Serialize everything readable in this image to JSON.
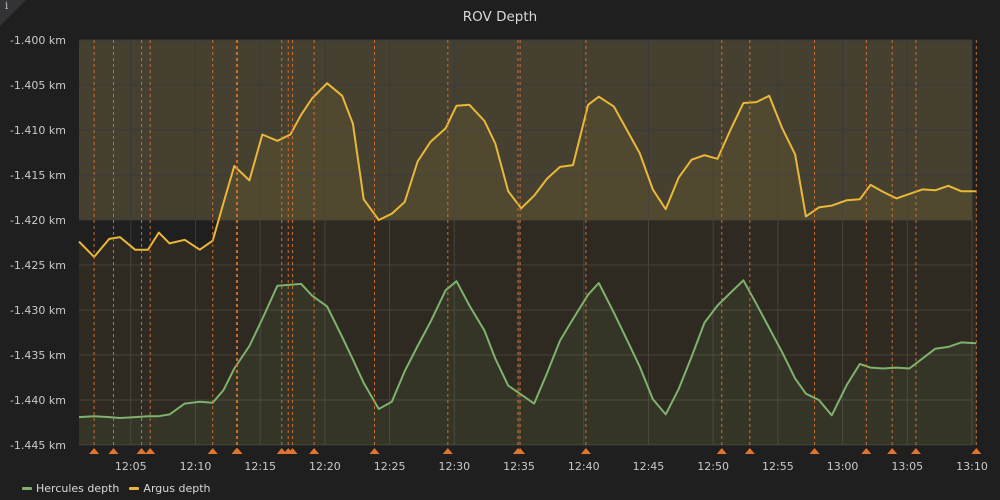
{
  "panel": {
    "title": "ROV Depth",
    "info_icon": "info-icon",
    "colors": {
      "background": "#1f1f20",
      "grid": "#3a3a3c",
      "threshold_fill": "#45402f",
      "annotation": "#e0752d"
    }
  },
  "chart_data": {
    "type": "line",
    "title": "ROV Depth",
    "xlabel": "",
    "ylabel": "",
    "x_range": [
      "12:01",
      "13:10"
    ],
    "ylim": [
      -1.445,
      -1.4
    ],
    "y_unit": "km",
    "y_ticks": [
      -1.4,
      -1.405,
      -1.41,
      -1.415,
      -1.42,
      -1.425,
      -1.43,
      -1.435,
      -1.44,
      -1.445
    ],
    "y_tick_labels": [
      "-1.400 km",
      "-1.405 km",
      "-1.410 km",
      "-1.415 km",
      "-1.420 km",
      "-1.425 km",
      "-1.430 km",
      "-1.435 km",
      "-1.440 km",
      "-1.445 km"
    ],
    "x_ticks": [
      "12:05",
      "12:10",
      "12:15",
      "12:20",
      "12:25",
      "12:30",
      "12:35",
      "12:40",
      "12:45",
      "12:50",
      "12:55",
      "13:00",
      "13:05",
      "13:10"
    ],
    "threshold_band": [
      -1.42,
      -1.4
    ],
    "grid": true,
    "legend_position": "bottom-left",
    "series": [
      {
        "name": "Argus depth",
        "color": "#eab839",
        "x": [
          "12:01:00",
          "12:02:10",
          "12:03:20",
          "12:04:10",
          "12:05:20",
          "12:06:20",
          "12:07:10",
          "12:08:00",
          "12:09:10",
          "12:10:20",
          "12:11:20",
          "12:12:10",
          "12:13:00",
          "12:14:10",
          "12:15:10",
          "12:16:20",
          "12:17:20",
          "12:18:10",
          "12:19:00",
          "12:20:10",
          "12:21:20",
          "12:22:10",
          "12:23:00",
          "12:24:10",
          "12:25:10",
          "12:26:10",
          "12:27:10",
          "12:28:10",
          "12:29:20",
          "12:30:10",
          "12:31:10",
          "12:32:20",
          "12:33:10",
          "12:34:10",
          "12:35:10",
          "12:36:10",
          "12:37:10",
          "12:38:10",
          "12:39:10",
          "12:40:20",
          "12:41:10",
          "12:42:20",
          "12:43:20",
          "12:44:20",
          "12:45:20",
          "12:46:20",
          "12:47:20",
          "12:48:20",
          "12:49:20",
          "12:50:20",
          "12:51:20",
          "12:52:20",
          "12:53:20",
          "12:54:20",
          "12:55:20",
          "12:56:20",
          "12:57:10",
          "12:58:10",
          "12:59:10",
          "13:00:20",
          "13:01:20",
          "13:02:10",
          "13:03:10",
          "13:04:10",
          "13:05:10",
          "13:06:10",
          "13:07:10",
          "13:08:10",
          "13:09:10",
          "13:10:20"
        ],
        "values": [
          -1.4224,
          -1.4241,
          -1.4221,
          -1.4219,
          -1.4233,
          -1.4233,
          -1.4214,
          -1.4226,
          -1.4222,
          -1.4233,
          -1.4223,
          -1.4181,
          -1.414,
          -1.4156,
          -1.4105,
          -1.4112,
          -1.4105,
          -1.4083,
          -1.4065,
          -1.4048,
          -1.4062,
          -1.4093,
          -1.4177,
          -1.42,
          -1.4193,
          -1.418,
          -1.4135,
          -1.4113,
          -1.4098,
          -1.4073,
          -1.4072,
          -1.409,
          -1.4115,
          -1.4168,
          -1.4187,
          -1.4173,
          -1.4154,
          -1.4141,
          -1.4139,
          -1.4072,
          -1.4063,
          -1.4074,
          -1.41,
          -1.4126,
          -1.4166,
          -1.4188,
          -1.4153,
          -1.4133,
          -1.4128,
          -1.4132,
          -1.41,
          -1.407,
          -1.4069,
          -1.4062,
          -1.4098,
          -1.4127,
          -1.4196,
          -1.4186,
          -1.4184,
          -1.4178,
          -1.4177,
          -1.4161,
          -1.4169,
          -1.4176,
          -1.4171,
          -1.4166,
          -1.4167,
          -1.4162,
          -1.4168,
          -1.4168
        ]
      },
      {
        "name": "Hercules depth",
        "color": "#7eb26d",
        "x": [
          "12:01:00",
          "12:02:10",
          "12:03:20",
          "12:04:10",
          "12:05:20",
          "12:06:20",
          "12:07:10",
          "12:08:00",
          "12:09:10",
          "12:10:20",
          "12:11:20",
          "12:12:10",
          "12:13:00",
          "12:14:10",
          "12:15:10",
          "12:16:20",
          "12:17:20",
          "12:18:10",
          "12:19:00",
          "12:20:10",
          "12:21:20",
          "12:22:10",
          "12:23:00",
          "12:24:10",
          "12:25:10",
          "12:26:10",
          "12:27:10",
          "12:28:10",
          "12:29:20",
          "12:30:10",
          "12:31:10",
          "12:32:20",
          "12:33:10",
          "12:34:10",
          "12:35:10",
          "12:36:10",
          "12:37:10",
          "12:38:10",
          "12:39:10",
          "12:40:20",
          "12:41:10",
          "12:42:20",
          "12:43:20",
          "12:44:20",
          "12:45:20",
          "12:46:20",
          "12:47:20",
          "12:48:20",
          "12:49:20",
          "12:50:20",
          "12:51:20",
          "12:52:20",
          "12:53:20",
          "12:54:20",
          "12:55:20",
          "12:56:20",
          "12:57:10",
          "12:58:10",
          "12:59:10",
          "13:00:20",
          "13:01:20",
          "13:02:10",
          "13:03:10",
          "13:04:10",
          "13:05:10",
          "13:06:10",
          "13:07:10",
          "13:08:10",
          "13:09:10",
          "13:10:20"
        ],
        "values": [
          -1.4419,
          -1.4418,
          -1.4419,
          -1.442,
          -1.4419,
          -1.4418,
          -1.4418,
          -1.4416,
          -1.4404,
          -1.4402,
          -1.4403,
          -1.4389,
          -1.4365,
          -1.434,
          -1.431,
          -1.4273,
          -1.4272,
          -1.4271,
          -1.4284,
          -1.4296,
          -1.433,
          -1.4355,
          -1.4381,
          -1.441,
          -1.4402,
          -1.4368,
          -1.434,
          -1.4313,
          -1.4278,
          -1.4268,
          -1.4295,
          -1.4323,
          -1.4354,
          -1.4384,
          -1.4394,
          -1.4404,
          -1.437,
          -1.4334,
          -1.431,
          -1.4283,
          -1.427,
          -1.4303,
          -1.4333,
          -1.4363,
          -1.4399,
          -1.4416,
          -1.4388,
          -1.4352,
          -1.4314,
          -1.4295,
          -1.4281,
          -1.4267,
          -1.4293,
          -1.432,
          -1.4347,
          -1.4376,
          -1.4393,
          -1.44,
          -1.4417,
          -1.4383,
          -1.436,
          -1.4364,
          -1.4365,
          -1.4364,
          -1.4365,
          -1.4354,
          -1.4343,
          -1.4341,
          -1.4336,
          -1.4337
        ]
      }
    ],
    "annotations_x": [
      "12:02:10",
      "12:03:40",
      "12:05:50",
      "12:06:30",
      "12:11:20",
      "12:13:10",
      "12:13:15",
      "12:16:40",
      "12:17:10",
      "12:17:30",
      "12:19:10",
      "12:23:50",
      "12:29:30",
      "12:34:55",
      "12:35:05",
      "12:40:10",
      "12:50:40",
      "12:52:50",
      "12:57:50",
      "13:01:50",
      "13:03:50",
      "13:05:40",
      "13:10:20"
    ]
  },
  "legend": {
    "items": [
      {
        "label": "Hercules depth",
        "color": "#7eb26d"
      },
      {
        "label": "Argus depth",
        "color": "#eab839"
      }
    ]
  }
}
